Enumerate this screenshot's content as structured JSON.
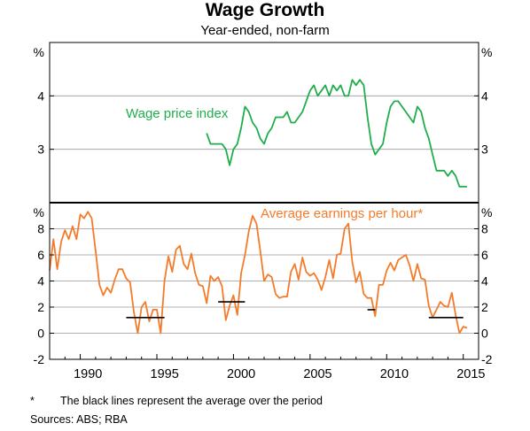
{
  "title": "Wage Growth",
  "subtitle": "Year-ended, non-farm",
  "footnote": {
    "marker": "*",
    "text": "The black lines represent the average over the period"
  },
  "sources": "Sources:   ABS; RBA",
  "colors": {
    "wpi": "#1fae4b",
    "earnings": "#f47b2a",
    "average": "#000000"
  },
  "chart_data": [
    {
      "type": "line",
      "panel": "top",
      "unit_label": "%",
      "ylim": [
        2.0,
        5.0
      ],
      "y_ticks": [
        3,
        4
      ],
      "x_range": [
        1988,
        2016
      ],
      "series": [
        {
          "name": "Wage price index",
          "x": [
            1998.25,
            1998.5,
            1998.75,
            1999.0,
            1999.25,
            1999.5,
            1999.75,
            2000.0,
            2000.25,
            2000.5,
            2000.75,
            2001.0,
            2001.25,
            2001.5,
            2001.75,
            2002.0,
            2002.25,
            2002.5,
            2002.75,
            2003.0,
            2003.25,
            2003.5,
            2003.75,
            2004.0,
            2004.25,
            2004.5,
            2004.75,
            2005.0,
            2005.25,
            2005.5,
            2005.75,
            2006.0,
            2006.25,
            2006.5,
            2006.75,
            2007.0,
            2007.25,
            2007.5,
            2007.75,
            2008.0,
            2008.25,
            2008.5,
            2008.75,
            2009.0,
            2009.25,
            2009.5,
            2009.75,
            2010.0,
            2010.25,
            2010.5,
            2010.75,
            2011.0,
            2011.25,
            2011.5,
            2011.75,
            2012.0,
            2012.25,
            2012.5,
            2012.75,
            2013.0,
            2013.25,
            2013.5,
            2013.75,
            2014.0,
            2014.25,
            2014.5,
            2014.75,
            2015.0,
            2015.25
          ],
          "values": [
            3.3,
            3.1,
            3.1,
            3.1,
            3.1,
            3.0,
            2.7,
            3.0,
            3.1,
            3.4,
            3.8,
            3.7,
            3.5,
            3.4,
            3.2,
            3.1,
            3.3,
            3.4,
            3.6,
            3.6,
            3.6,
            3.7,
            3.5,
            3.5,
            3.6,
            3.7,
            3.9,
            4.1,
            4.2,
            4.0,
            4.1,
            4.2,
            4.0,
            4.2,
            4.1,
            4.2,
            4.0,
            4.0,
            4.3,
            4.2,
            4.3,
            4.2,
            3.6,
            3.1,
            2.9,
            3.0,
            3.1,
            3.5,
            3.8,
            3.9,
            3.9,
            3.8,
            3.7,
            3.6,
            3.5,
            3.8,
            3.7,
            3.4,
            3.2,
            2.9,
            2.6,
            2.6,
            2.6,
            2.5,
            2.6,
            2.5,
            2.3,
            2.3,
            2.3
          ]
        }
      ]
    },
    {
      "type": "line",
      "panel": "bottom",
      "unit_label": "%",
      "ylim": [
        -2,
        10
      ],
      "y_ticks": [
        -2,
        0,
        2,
        4,
        6,
        8
      ],
      "x_range": [
        1988,
        2016
      ],
      "x_ticks": [
        1990,
        1995,
        2000,
        2005,
        2010,
        2015
      ],
      "series": [
        {
          "name": "Average earnings per hour*",
          "x": [
            1988.0,
            1988.25,
            1988.5,
            1988.75,
            1989.0,
            1989.25,
            1989.5,
            1989.75,
            1990.0,
            1990.25,
            1990.5,
            1990.75,
            1991.0,
            1991.25,
            1991.5,
            1991.75,
            1992.0,
            1992.25,
            1992.5,
            1992.75,
            1993.0,
            1993.25,
            1993.5,
            1993.75,
            1994.0,
            1994.25,
            1994.5,
            1994.75,
            1995.0,
            1995.25,
            1995.5,
            1995.75,
            1996.0,
            1996.25,
            1996.5,
            1996.75,
            1997.0,
            1997.25,
            1997.5,
            1997.75,
            1998.0,
            1998.25,
            1998.5,
            1998.75,
            1999.0,
            1999.25,
            1999.5,
            1999.75,
            2000.0,
            2000.25,
            2000.5,
            2000.75,
            2001.0,
            2001.25,
            2001.5,
            2001.75,
            2002.0,
            2002.25,
            2002.5,
            2002.75,
            2003.0,
            2003.25,
            2003.5,
            2003.75,
            2004.0,
            2004.25,
            2004.5,
            2004.75,
            2005.0,
            2005.25,
            2005.5,
            2005.75,
            2006.0,
            2006.25,
            2006.5,
            2006.75,
            2007.0,
            2007.25,
            2007.5,
            2007.75,
            2008.0,
            2008.25,
            2008.5,
            2008.75,
            2009.0,
            2009.25,
            2009.5,
            2009.75,
            2010.0,
            2010.25,
            2010.5,
            2010.75,
            2011.0,
            2011.25,
            2011.5,
            2011.75,
            2012.0,
            2012.25,
            2012.5,
            2012.75,
            2013.0,
            2013.25,
            2013.5,
            2013.75,
            2014.0,
            2014.25,
            2014.5,
            2014.75,
            2015.0,
            2015.25
          ],
          "values": [
            4.8,
            7.2,
            4.9,
            7.0,
            7.9,
            7.2,
            8.2,
            7.2,
            9.1,
            8.8,
            9.3,
            8.8,
            6.3,
            3.7,
            2.9,
            3.5,
            3.1,
            4.1,
            4.9,
            4.9,
            4.2,
            3.9,
            1.6,
            0.0,
            2.0,
            2.4,
            0.9,
            1.8,
            1.8,
            0.0,
            4.0,
            5.9,
            4.7,
            6.4,
            6.7,
            5.3,
            4.9,
            6.1,
            4.6,
            3.7,
            3.6,
            2.3,
            4.4,
            4.0,
            4.3,
            3.6,
            1.0,
            2.1,
            2.9,
            1.4,
            4.6,
            6.0,
            7.8,
            9.0,
            8.4,
            6.3,
            4.0,
            4.5,
            4.3,
            3.0,
            2.7,
            2.8,
            2.8,
            4.7,
            5.3,
            4.1,
            5.8,
            4.7,
            4.4,
            4.6,
            4.1,
            3.3,
            4.3,
            5.6,
            4.2,
            6.0,
            6.1,
            8.0,
            8.4,
            5.5,
            3.9,
            4.7,
            3.0,
            2.7,
            2.7,
            1.3,
            3.7,
            3.7,
            4.8,
            5.4,
            4.8,
            5.6,
            5.8,
            6.0,
            5.2,
            4.0,
            5.3,
            4.2,
            4.1,
            2.1,
            1.2,
            1.8,
            2.4,
            2.1,
            2.0,
            3.1,
            1.4,
            0.0,
            0.5,
            0.4
          ]
        }
      ],
      "averages": [
        {
          "x_start": 1993.0,
          "x_end": 1995.5,
          "value": 1.2
        },
        {
          "x_start": 1999.0,
          "x_end": 2000.75,
          "value": 2.4
        },
        {
          "x_start": 2008.75,
          "x_end": 2009.25,
          "value": 1.8
        },
        {
          "x_start": 2012.75,
          "x_end": 2015.0,
          "value": 1.2
        }
      ]
    }
  ]
}
